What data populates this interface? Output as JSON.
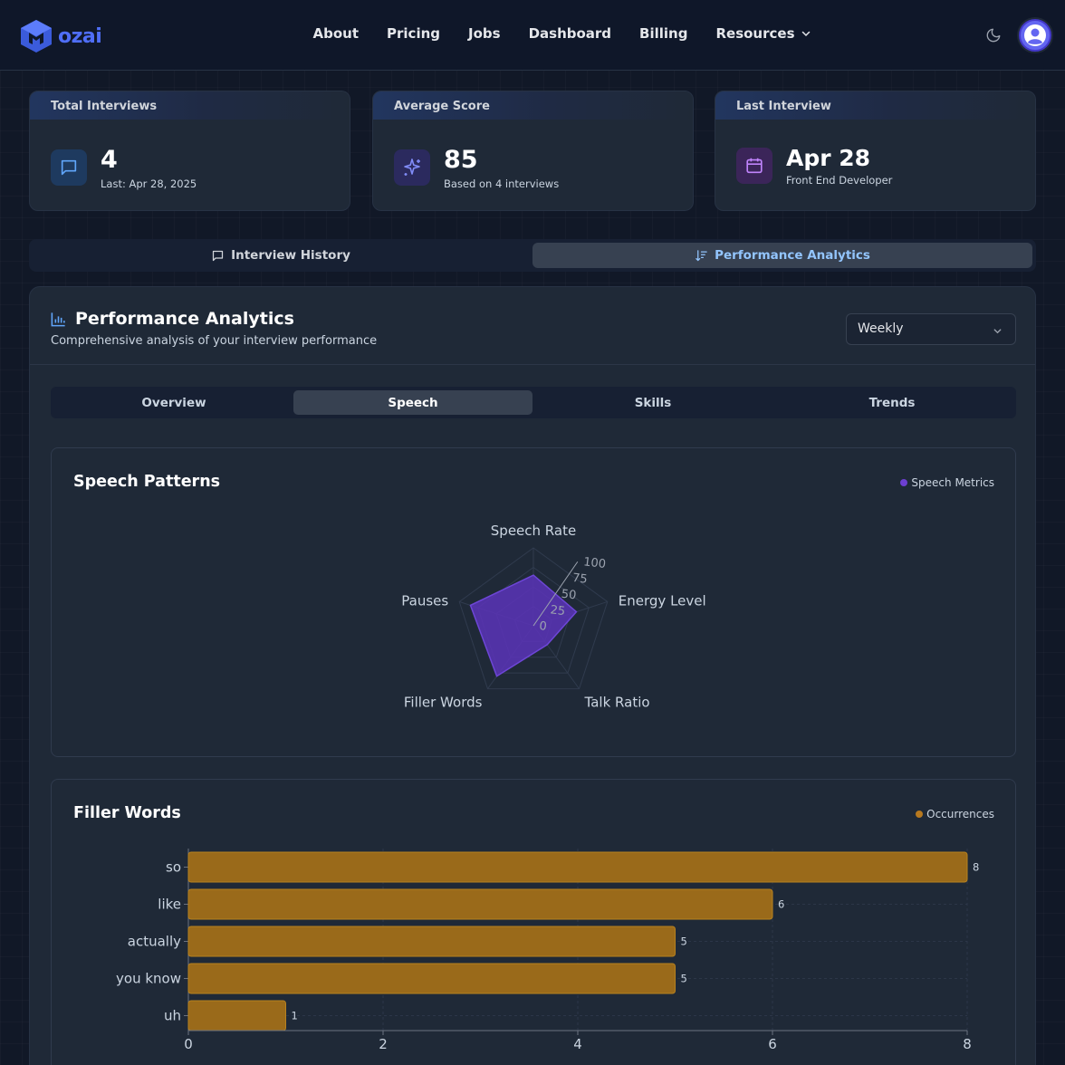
{
  "header": {
    "logo_text": "ozai",
    "nav": [
      {
        "label": "About"
      },
      {
        "label": "Pricing"
      },
      {
        "label": "Jobs"
      },
      {
        "label": "Dashboard"
      },
      {
        "label": "Billing"
      },
      {
        "label": "Resources"
      }
    ]
  },
  "stats": [
    {
      "title": "Total Interviews",
      "value": "4",
      "sub": "Last: Apr 28, 2025",
      "icon": "message-square-icon"
    },
    {
      "title": "Average Score",
      "value": "85",
      "sub": "Based on 4 interviews",
      "icon": "sparkles-icon"
    },
    {
      "title": "Last Interview",
      "value": "Apr 28",
      "sub": "Front End Developer",
      "icon": "calendar-icon"
    }
  ],
  "main_tabs": [
    {
      "label": "Interview History",
      "active": false
    },
    {
      "label": "Performance Analytics",
      "active": true
    }
  ],
  "analytics": {
    "title": "Performance Analytics",
    "subtitle": "Comprehensive analysis of your interview performance",
    "period": "Weekly",
    "sub_tabs": [
      {
        "label": "Overview",
        "active": false
      },
      {
        "label": "Speech",
        "active": true
      },
      {
        "label": "Skills",
        "active": false
      },
      {
        "label": "Trends",
        "active": false
      }
    ]
  },
  "colors": {
    "accent": "#4f6ef7",
    "radar_fill": "#5b34b8",
    "bar_fill": "#9a6a1a",
    "active_tab_text": "#93c5fd"
  },
  "chart_data": [
    {
      "type": "radar",
      "title": "Speech Patterns",
      "legend": [
        "Speech Metrics"
      ],
      "categories": [
        "Speech Rate",
        "Energy Level",
        "Talk Ratio",
        "Filler Words",
        "Pauses"
      ],
      "radial_ticks": [
        0,
        25,
        50,
        75,
        100
      ],
      "range": [
        0,
        100
      ],
      "series": [
        {
          "name": "Speech Metrics",
          "values": [
            65,
            58,
            30,
            80,
            85
          ]
        }
      ]
    },
    {
      "type": "bar",
      "orientation": "horizontal",
      "title": "Filler Words",
      "legend": [
        "Occurrences"
      ],
      "categories": [
        "so",
        "like",
        "actually",
        "you know",
        "uh"
      ],
      "series": [
        {
          "name": "Occurrences",
          "values": [
            8,
            6,
            5,
            5,
            1
          ]
        }
      ],
      "xlim": [
        0,
        8
      ],
      "xticks": [
        0,
        2,
        4,
        6,
        8
      ]
    }
  ]
}
